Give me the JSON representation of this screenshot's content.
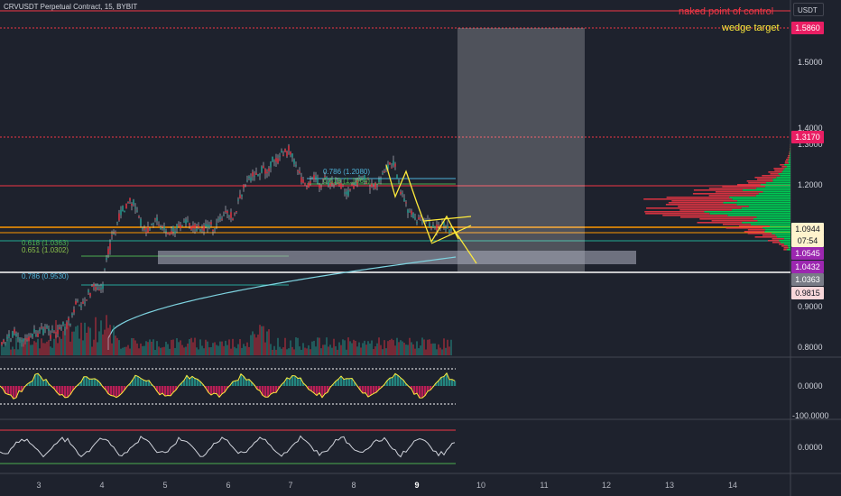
{
  "title": "CRVUSDT Perpetual Contract, 15, BYBIT",
  "currency": "USDT",
  "colors": {
    "background": "#1e222d",
    "red": "#f23645",
    "pink": "#e91e63",
    "green": "#22ab94",
    "volume_green": "#26a69a",
    "orange": "#ff9800",
    "yellow": "#ffeb3b",
    "purple": "#9c27b0",
    "cyan": "#7ed3e0",
    "gray_box": "#6a6d78"
  },
  "annotations": {
    "naked_poc": "naked point of control",
    "wedge_target": "wedge target"
  },
  "fib_labels": {
    "f786_top": "0.786 (1.2080)",
    "f618_top": "0.618 (1.1864)",
    "f618_low": "0.618 (1.0363)",
    "f651_low": "0.651 (1.0302)",
    "f786_low": "0.786 (0.9530)"
  },
  "price_axis": [
    "1.5000",
    "1.4000",
    "1.3000",
    "1.2000",
    "0.9000",
    "0.8000"
  ],
  "price_tags": {
    "wedge_target": "1.5860",
    "level_1317": "1.3170",
    "last_price": "1.0944",
    "countdown": "07:54",
    "level_1054": "1.0545",
    "level_1043": "1.0432",
    "level_1036": "1.0363",
    "level_0981": "0.9815"
  },
  "osc1_axis": [
    "0.0000",
    "-100.0000"
  ],
  "osc2_axis": [
    "0.0000"
  ],
  "time_axis": [
    "3",
    "4",
    "5",
    "6",
    "7",
    "8",
    "9",
    "10",
    "11",
    "12",
    "13",
    "14"
  ]
}
